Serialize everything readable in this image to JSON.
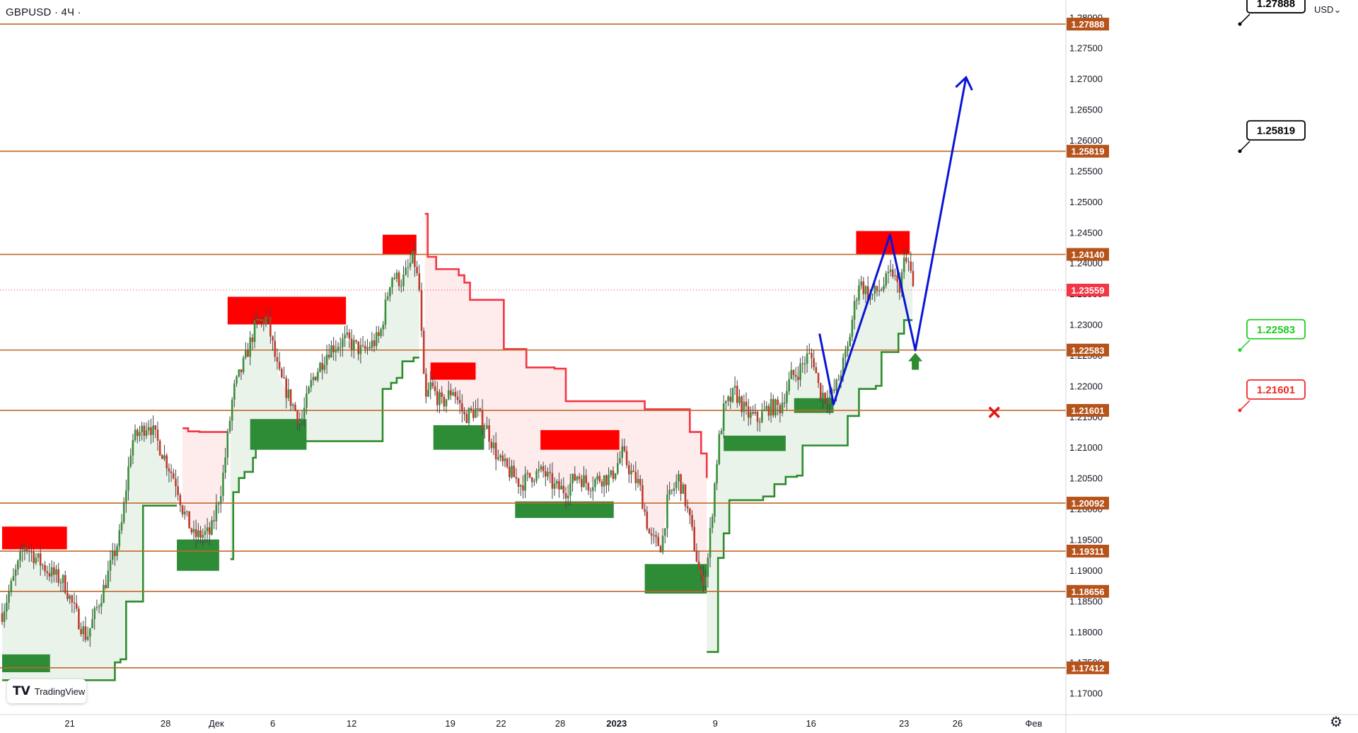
{
  "header": {
    "symbol": "GBPUSD",
    "separator": "·",
    "interval": "4Ч",
    "trail": "·"
  },
  "currency_button": {
    "label": "USD",
    "icon": "chevron-down-icon"
  },
  "branding": {
    "logo": "TV",
    "name": "TradingView"
  },
  "settings_icon": "gear-icon",
  "colors": {
    "level": "#c0692a",
    "level_label": "#b5531b",
    "up_band": "#2e8b2e",
    "down_band": "#f23645",
    "supply": "#ff0000",
    "demand": "#2e8b36",
    "forecast": "#0a14d8",
    "price_label": "#f23645",
    "callout_green": "#22cc22",
    "callout_red": "#ee2a2a"
  },
  "chart_data": {
    "type": "candlestick",
    "symbol": "GBPUSD",
    "timeframe": "4Ч",
    "ylim": [
      1.1665,
      1.2828
    ],
    "y_ticks": [
      "1.28000",
      "1.27500",
      "1.27000",
      "1.26500",
      "1.26000",
      "1.25500",
      "1.25000",
      "1.24500",
      "1.24000",
      "1.23500",
      "1.23000",
      "1.22500",
      "1.22000",
      "1.21500",
      "1.21000",
      "1.20500",
      "1.20000",
      "1.19500",
      "1.19000",
      "1.18500",
      "1.18000",
      "1.17500",
      "1.17000"
    ],
    "x_labels": [
      "21",
      "28",
      "Дек",
      "6",
      "12",
      "19",
      "22",
      "28",
      "2023",
      "9",
      "16",
      "23",
      "26",
      "Фев"
    ],
    "current_price": "1.23559",
    "levels": [
      "1.27888",
      "1.25819",
      "1.24140",
      "1.22583",
      "1.21601",
      "1.20092",
      "1.19311",
      "1.18656",
      "1.17412"
    ],
    "callouts": [
      {
        "text": "1.27888",
        "style": "black"
      },
      {
        "text": "1.25819",
        "style": "black"
      },
      {
        "text": "1.22583",
        "style": "green"
      },
      {
        "text": "1.21601",
        "style": "red"
      }
    ],
    "supply_zones": [
      {
        "d": [
          0,
          11.5
        ],
        "y": [
          1.1934,
          1.1971
        ]
      },
      {
        "d": [
          40,
          61
        ],
        "y": [
          1.23,
          1.2345
        ]
      },
      {
        "d": [
          67.5,
          73.5
        ],
        "y": [
          1.2414,
          1.2446
        ]
      },
      {
        "d": [
          76,
          84
        ],
        "y": [
          1.221,
          1.2238
        ]
      },
      {
        "d": [
          95.5,
          109.5
        ],
        "y": [
          1.2096,
          1.2128
        ]
      },
      {
        "d": [
          151.5,
          161
        ],
        "y": [
          1.2414,
          1.2452
        ]
      }
    ],
    "demand_zones": [
      {
        "d": [
          0,
          8.5
        ],
        "y": [
          1.1734,
          1.1763
        ]
      },
      {
        "d": [
          31,
          38.5
        ],
        "y": [
          1.1899,
          1.195
        ]
      },
      {
        "d": [
          44,
          54
        ],
        "y": [
          1.2096,
          1.2146
        ]
      },
      {
        "d": [
          76.5,
          85.5
        ],
        "y": [
          1.2096,
          1.2136
        ]
      },
      {
        "d": [
          91,
          108.5
        ],
        "y": [
          1.1985,
          1.2012
        ]
      },
      {
        "d": [
          114,
          125
        ],
        "y": [
          1.1862,
          1.191
        ]
      },
      {
        "d": [
          128,
          139
        ],
        "y": [
          1.2094,
          1.2119
        ]
      },
      {
        "d": [
          140.5,
          147.5
        ],
        "y": [
          1.2156,
          1.218
        ]
      }
    ],
    "trend_bands": [
      {
        "dir": "up",
        "points": [
          [
            0,
            1.1721
          ],
          [
            18,
            1.1721
          ],
          [
            20,
            1.175
          ],
          [
            21,
            1.1755
          ],
          [
            22,
            1.1849
          ],
          [
            25,
            1.2005
          ],
          [
            31,
            1.2005
          ]
        ]
      },
      {
        "dir": "down",
        "points": [
          [
            32,
            1.2131
          ],
          [
            33,
            1.2126
          ],
          [
            35,
            1.2125
          ],
          [
            40,
            1.2125
          ]
        ]
      },
      {
        "dir": "up",
        "points": [
          [
            40.5,
            1.1918
          ],
          [
            41,
            1.2027
          ],
          [
            42,
            1.205
          ],
          [
            43,
            1.206
          ],
          [
            44,
            1.206
          ],
          [
            44.5,
            1.2083
          ],
          [
            45,
            1.211
          ],
          [
            66,
            1.211
          ],
          [
            67.5,
            1.2195
          ],
          [
            69,
            1.2205
          ],
          [
            70,
            1.2213
          ],
          [
            71,
            1.224
          ],
          [
            73,
            1.2246
          ],
          [
            74,
            1.2246
          ]
        ]
      },
      {
        "dir": "down",
        "points": [
          [
            75,
            1.248
          ],
          [
            75.5,
            1.241
          ],
          [
            77,
            1.239
          ],
          [
            81,
            1.238
          ],
          [
            82,
            1.2368
          ],
          [
            83,
            1.234
          ],
          [
            88,
            1.234
          ],
          [
            89,
            1.226
          ],
          [
            92,
            1.226
          ],
          [
            93,
            1.223
          ],
          [
            98,
            1.2228
          ],
          [
            100,
            1.2175
          ],
          [
            113,
            1.2175
          ],
          [
            114,
            1.2162
          ],
          [
            121,
            1.2162
          ],
          [
            122,
            1.2125
          ],
          [
            124,
            1.209
          ],
          [
            125,
            1.205
          ]
        ]
      },
      {
        "dir": "up",
        "points": [
          [
            125,
            1.1767
          ],
          [
            127,
            1.192
          ],
          [
            128,
            1.196
          ],
          [
            129,
            1.2014
          ],
          [
            133,
            1.2014
          ],
          [
            135,
            1.202
          ],
          [
            137,
            1.204
          ],
          [
            139,
            1.2052
          ],
          [
            141,
            1.2054
          ],
          [
            142,
            1.2103
          ],
          [
            148,
            1.2103
          ],
          [
            150,
            1.2151
          ],
          [
            152,
            1.2195
          ],
          [
            155,
            1.22
          ],
          [
            156,
            1.2255
          ],
          [
            158,
            1.2255
          ],
          [
            159,
            1.2285
          ],
          [
            160,
            1.2307
          ],
          [
            161.5,
            1.2307
          ]
        ]
      }
    ],
    "candles_note": "OHLC values generated per bar (approximate path through visible swing points)",
    "price_path": [
      [
        0,
        1.183
      ],
      [
        4,
        1.194
      ],
      [
        8,
        1.19
      ],
      [
        11,
        1.188
      ],
      [
        13,
        1.183
      ],
      [
        15,
        1.179
      ],
      [
        18,
        1.187
      ],
      [
        21,
        1.196
      ],
      [
        23,
        1.211
      ],
      [
        26,
        1.214
      ],
      [
        29,
        1.208
      ],
      [
        31,
        1.204
      ],
      [
        32,
        1.2
      ],
      [
        34,
        1.1955
      ],
      [
        37,
        1.196
      ],
      [
        39,
        1.204
      ],
      [
        41,
        1.219
      ],
      [
        43,
        1.224
      ],
      [
        45,
        1.23
      ],
      [
        47,
        1.231
      ],
      [
        49,
        1.222
      ],
      [
        51,
        1.218
      ],
      [
        53,
        1.214
      ],
      [
        55,
        1.221
      ],
      [
        58,
        1.226
      ],
      [
        61,
        1.2275
      ],
      [
        64,
        1.2255
      ],
      [
        67,
        1.228
      ],
      [
        69,
        1.238
      ],
      [
        71,
        1.237
      ],
      [
        73,
        1.241
      ],
      [
        74,
        1.2355
      ],
      [
        75,
        1.217
      ],
      [
        76,
        1.22
      ],
      [
        78,
        1.217
      ],
      [
        80,
        1.2195
      ],
      [
        82,
        1.215
      ],
      [
        84,
        1.216
      ],
      [
        86,
        1.213
      ],
      [
        88,
        1.208
      ],
      [
        90,
        1.206
      ],
      [
        92,
        1.204
      ],
      [
        94,
        1.2055
      ],
      [
        96,
        1.206
      ],
      [
        98,
        1.2035
      ],
      [
        100,
        1.203
      ],
      [
        102,
        1.2055
      ],
      [
        104,
        1.204
      ],
      [
        106,
        1.205
      ],
      [
        108,
        1.205
      ],
      [
        110,
        1.209
      ],
      [
        112,
        1.205
      ],
      [
        113,
        1.204
      ],
      [
        115,
        1.195
      ],
      [
        117,
        1.194
      ],
      [
        118,
        1.201
      ],
      [
        120,
        1.205
      ],
      [
        121,
        1.202
      ],
      [
        122,
        1.198
      ],
      [
        123,
        1.193
      ],
      [
        124,
        1.188
      ],
      [
        125,
        1.19
      ],
      [
        127,
        1.21
      ],
      [
        128,
        1.216
      ],
      [
        130,
        1.219
      ],
      [
        132,
        1.2155
      ],
      [
        134,
        1.2145
      ],
      [
        136,
        1.2165
      ],
      [
        138,
        1.2165
      ],
      [
        140,
        1.2215
      ],
      [
        141,
        1.222
      ],
      [
        143,
        1.225
      ],
      [
        144,
        1.224
      ],
      [
        145,
        1.219
      ],
      [
        147,
        1.218
      ],
      [
        148,
        1.22
      ],
      [
        150,
        1.226
      ],
      [
        151,
        1.232
      ],
      [
        152,
        1.237
      ],
      [
        154,
        1.2345
      ],
      [
        156,
        1.236
      ],
      [
        158,
        1.2385
      ],
      [
        159,
        1.2355
      ],
      [
        160,
        1.24
      ],
      [
        161,
        1.24
      ],
      [
        161.5,
        1.2355
      ]
    ],
    "forecast_path": [
      [
        145,
        1.2285
      ],
      [
        147.5,
        1.217
      ],
      [
        157.5,
        1.2446
      ],
      [
        162,
        1.2258
      ],
      [
        171,
        1.2702
      ]
    ],
    "forecast_arrowhead_at_end": true,
    "buy_arrow": {
      "d": 162,
      "y": 1.224
    },
    "cancel_mark": {
      "d": 176,
      "y": 1.2157
    }
  }
}
